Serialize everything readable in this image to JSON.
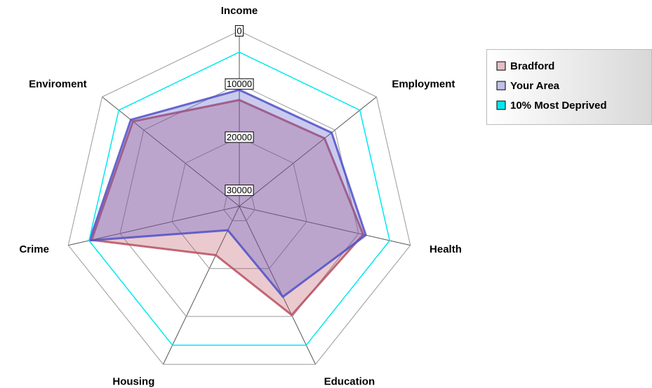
{
  "chart_data": {
    "type": "radar",
    "categories": [
      "Income",
      "Employment",
      "Health",
      "Education",
      "Housing",
      "Crime",
      "Enviroment"
    ],
    "ylim": [
      0,
      33000
    ],
    "reversed": true,
    "yticks": [
      0,
      10000,
      20000,
      30000
    ],
    "series": [
      {
        "name": "Bradford",
        "color": "#b85060",
        "fill": true,
        "values": [
          13000,
          12500,
          9100,
          10300,
          22800,
          4500,
          7400
        ]
      },
      {
        "name": "Your Area",
        "color": "#5050c8",
        "fill": true,
        "values": [
          11100,
          10800,
          8600,
          14100,
          28000,
          4100,
          6900
        ]
      },
      {
        "name": "10% Most Deprived",
        "color": "#00e8f0",
        "fill": false,
        "values": [
          4000,
          4000,
          4000,
          4000,
          4000,
          4000,
          4000
        ]
      }
    ],
    "legend": "top-right"
  }
}
